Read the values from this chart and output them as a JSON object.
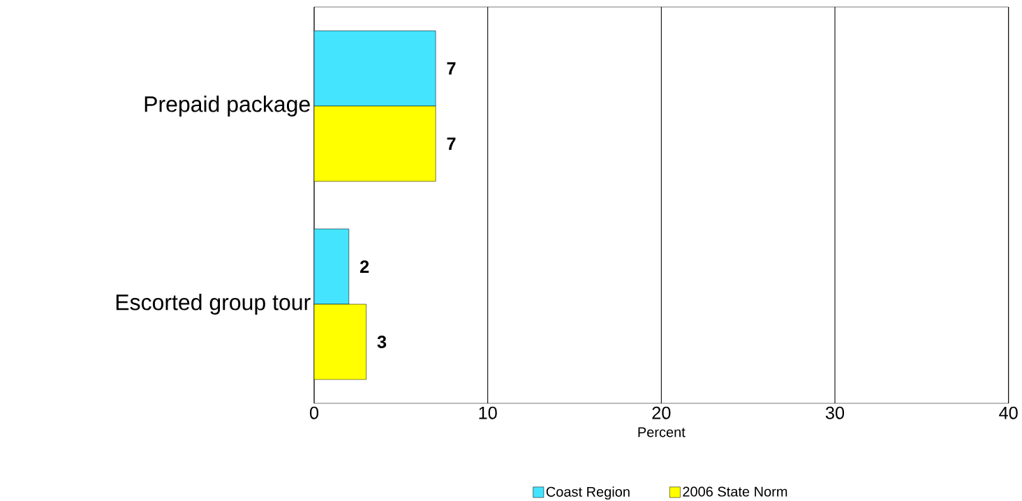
{
  "chart_data": {
    "type": "bar",
    "orientation": "horizontal",
    "xlabel": "Percent",
    "categories": [
      "Prepaid package",
      "Escorted group tour"
    ],
    "series": [
      {
        "name": "Coast Region",
        "color": "#44e4ff",
        "values": [
          7,
          2
        ]
      },
      {
        "name": "2006 State Norm",
        "color": "#ffff00",
        "values": [
          7,
          3
        ]
      }
    ],
    "xlim": [
      0,
      40
    ],
    "xticks": [
      0,
      10,
      20,
      30,
      40
    ],
    "grid": "x",
    "legend": "bottom",
    "data_labels": true
  }
}
